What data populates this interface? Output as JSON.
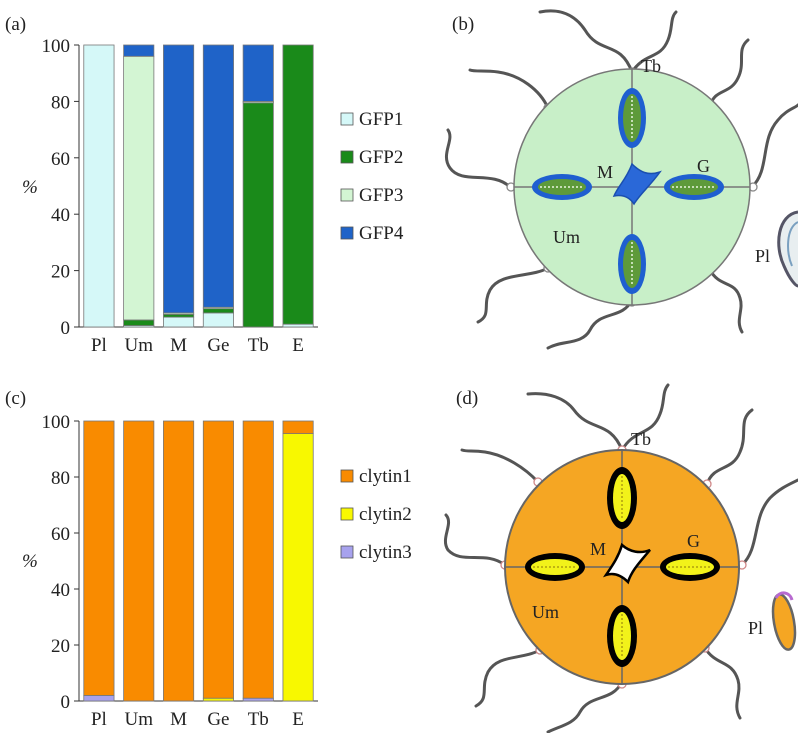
{
  "panels": {
    "a": {
      "label": "(a)",
      "ylabel": "%"
    },
    "b": {
      "label": "(b)",
      "labels": {
        "tb": "Tb",
        "m": "M",
        "g": "G",
        "um": "Um",
        "pl": "Pl"
      }
    },
    "c": {
      "label": "(c)",
      "ylabel": "%"
    },
    "d": {
      "label": "(d)",
      "labels": {
        "tb": "Tb",
        "m": "M",
        "g": "G",
        "um": "Um",
        "pl": "Pl"
      }
    }
  },
  "chart_data": [
    {
      "id": "a",
      "type": "bar",
      "stacked": true,
      "categories": [
        "Pl",
        "Um",
        "M",
        "Ge",
        "Tb",
        "E"
      ],
      "ylim": [
        0,
        100
      ],
      "yticks": [
        0,
        20,
        40,
        60,
        80,
        100
      ],
      "ylabel": "%",
      "legend_position": "right",
      "series": [
        {
          "name": "GFP1",
          "color": "#d5f8f8",
          "values": [
            100,
            0.5,
            3.5,
            5,
            0,
            1
          ]
        },
        {
          "name": "GFP2",
          "color": "#1a8a1a",
          "values": [
            0,
            2,
            1,
            1.5,
            79.5,
            99
          ]
        },
        {
          "name": "GFP3",
          "color": "#d3f5d3",
          "values": [
            0,
            93.5,
            0.5,
            0.5,
            0.5,
            0
          ]
        },
        {
          "name": "GFP4",
          "color": "#1f63c8",
          "values": [
            0,
            4,
            95,
            93,
            20,
            0
          ]
        }
      ]
    },
    {
      "id": "c",
      "type": "bar",
      "stacked": true,
      "categories": [
        "Pl",
        "Um",
        "M",
        "Ge",
        "Tb",
        "E"
      ],
      "ylim": [
        0,
        100
      ],
      "yticks": [
        0,
        20,
        40,
        60,
        80,
        100
      ],
      "ylabel": "%",
      "legend_position": "right",
      "series": [
        {
          "name": "clytin3",
          "color": "#a7a2ee",
          "values": [
            2,
            0,
            0,
            0,
            1,
            0
          ]
        },
        {
          "name": "clytin2",
          "color": "#f8f800",
          "values": [
            0,
            0,
            0,
            1,
            0,
            95.5
          ]
        },
        {
          "name": "clytin1",
          "color": "#f98b00",
          "values": [
            98,
            100,
            100,
            99,
            99,
            4.5
          ]
        }
      ]
    }
  ],
  "colors": {
    "bell_b": "#c8efc8",
    "gonad_b": "#1f5fd0",
    "gonad_inner_b": "#5e9a3a",
    "bell_d": "#f5a623",
    "gonad_d": "#000000",
    "gonad_inner_d": "#f2f21a",
    "tentacle": "#555555"
  }
}
